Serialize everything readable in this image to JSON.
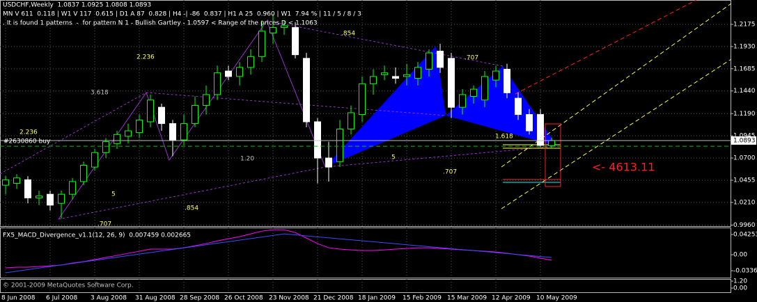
{
  "chart_data": [
    {
      "type": "candlestick",
      "title": "USDCHF,Weekly  1.0837 1.0925 1.0808 1.0893",
      "info": "MN V 611  0.118 | W1 V 117  0.615 | D1 A 87  0.828 | H4 -| -86  0.837 | H1 A 25  0.960 | W1  7.94 % | 11 / 5 / 8 / 3",
      "subtitle": ". It is found 1 patterns  -  for pattern N 1 - Bullish Gartley - 1.0597 < Range of the prices D < 1.1063",
      "categories": [
        "8 Jun 2008",
        null,
        null,
        null,
        "6 Jul 2008",
        null,
        null,
        null,
        "3 Aug 2008",
        null,
        null,
        null,
        "31 Aug 2008",
        null,
        null,
        null,
        "28 Sep 2008",
        null,
        null,
        null,
        "26 Oct 2008",
        null,
        null,
        null,
        "23 Nov 2008",
        null,
        null,
        null,
        "21 Dec 2008",
        null,
        null,
        null,
        "18 Jan 2009",
        null,
        null,
        null,
        "15 Feb 2009",
        null,
        null,
        null,
        "15 Mar 2009",
        null,
        null,
        null,
        "12 Apr 2009",
        null,
        null,
        null,
        "10 May 2009",
        null
      ],
      "series": [
        {
          "open": [
            1.04,
            1.042,
            1.046,
            1.026,
            1.03,
            1.02,
            1.03,
            1.044,
            1.06,
            1.076,
            1.086,
            1.094,
            1.098,
            1.11,
            1.126,
            1.108,
            1.09,
            1.108,
            1.128,
            1.14,
            1.166,
            1.16,
            1.17,
            1.182,
            1.208,
            1.214,
            1.214,
            1.18,
            1.11,
            1.07,
            1.066,
            1.102,
            1.118,
            1.152,
            1.162,
            1.16,
            1.16,
            1.158,
            1.168,
            1.188,
            1.18,
            1.126,
            1.138,
            1.134,
            1.156,
            1.168,
            1.136,
            1.118,
            1.118,
            1.0837
          ],
          "high": [
            1.05,
            1.052,
            1.05,
            1.034,
            1.034,
            1.034,
            1.048,
            1.066,
            1.08,
            1.092,
            1.1,
            1.108,
            1.118,
            1.14,
            1.13,
            1.112,
            1.118,
            1.138,
            1.15,
            1.172,
            1.172,
            1.176,
            1.19,
            1.222,
            1.228,
            1.222,
            1.22,
            1.186,
            1.114,
            1.088,
            1.112,
            1.128,
            1.16,
            1.168,
            1.172,
            1.17,
            1.174,
            1.176,
            1.19,
            1.196,
            1.186,
            1.146,
            1.15,
            1.166,
            1.172,
            1.174,
            1.142,
            1.124,
            1.124,
            1.0925
          ],
          "low": [
            1.03,
            1.036,
            1.02,
            1.018,
            1.012,
            1.003,
            1.024,
            1.04,
            1.056,
            1.07,
            1.08,
            1.086,
            1.092,
            1.104,
            1.1,
            1.072,
            1.084,
            1.104,
            1.118,
            1.134,
            1.156,
            1.15,
            1.162,
            1.176,
            1.196,
            1.206,
            1.18,
            1.104,
            1.042,
            1.044,
            1.06,
            1.096,
            1.11,
            1.14,
            1.156,
            1.152,
            1.15,
            1.15,
            1.16,
            1.164,
            1.114,
            1.118,
            1.13,
            1.126,
            1.148,
            1.136,
            1.112,
            1.096,
            1.082,
            1.0808
          ],
          "close": [
            1.046,
            1.048,
            1.026,
            1.028,
            1.018,
            1.03,
            1.044,
            1.062,
            1.076,
            1.088,
            1.096,
            1.1,
            1.112,
            1.134,
            1.108,
            1.09,
            1.108,
            1.128,
            1.14,
            1.164,
            1.16,
            1.17,
            1.182,
            1.21,
            1.214,
            1.216,
            1.184,
            1.11,
            1.07,
            1.06,
            1.102,
            1.12,
            1.152,
            1.16,
            1.164,
            1.158,
            1.162,
            1.17,
            1.186,
            1.17,
            1.126,
            1.14,
            1.146,
            1.16,
            1.166,
            1.142,
            1.118,
            1.1,
            1.084,
            1.0893
          ]
        }
      ],
      "up_color": "#00ff00",
      "down_color": "#ffffff",
      "ylim": [
        0.9948,
        1.2444
      ],
      "yticks": [
        {
          "value": 0.996,
          "label": "0.9960"
        },
        {
          "value": 1.021,
          "label": "1.0210"
        },
        1.0455,
        {
          "value": 1.07,
          "label": "1.0700"
        },
        1.0945,
        {
          "value": 1.119,
          "label": "1.1190"
        },
        {
          "value": 1.144,
          "label": "1.1440"
        },
        1.1685,
        {
          "value": 1.193,
          "label": "1.1930"
        },
        1.2175
      ],
      "grid": true,
      "last_price": {
        "value": 1.0893,
        "label": "1.0893"
      },
      "order": {
        "label": "#2630860 buy",
        "price": 1.083
      },
      "profit_label": "<- 4613.11",
      "annotations": [
        "3.618",
        "2.236",
        "2.236",
        ".854",
        ".707",
        "5",
        ".854",
        ".707",
        "1.20",
        "5",
        ".707",
        "1.618"
      ]
    },
    {
      "type": "line",
      "title": "FX5_MACD_Divergence_v1.1(12, 26, 9)  0.007459 0.002665",
      "series": [
        {
          "name": "MACD",
          "color": "#ff00ff",
          "values": [
            -0.0277,
            -0.0263,
            -0.0263,
            -0.0248,
            -0.0234,
            -0.0219,
            -0.0175,
            -0.0146,
            -0.0102,
            -0.0058,
            -0.0015,
            0.0029,
            0.0073,
            0.0117,
            0.0117,
            0.0117,
            0.0146,
            0.019,
            0.0234,
            0.0292,
            0.0336,
            0.038,
            0.0438,
            0.0496,
            0.0526,
            0.0526,
            0.0467,
            0.035,
            0.0234,
            0.0146,
            0.0117,
            0.0102,
            0.0088,
            0.0088,
            0.0102,
            0.0117,
            0.0131,
            0.0146,
            0.0146,
            0.0131,
            0.0117,
            0.0102,
            0.0088,
            0.0073,
            0.0058,
            0.0029,
            0,
            -0.0029,
            -0.0073,
            -0.0117
          ]
        },
        {
          "name": "Signal",
          "color": "#3a4cff",
          "values": [
            -0.038,
            -0.0347,
            -0.0314,
            -0.0282,
            -0.0248,
            -0.0216,
            -0.0184,
            -0.015,
            -0.0118,
            -0.0085,
            -0.0053,
            -0.002,
            0.0013,
            0.0045,
            0.0079,
            0.0111,
            0.0143,
            0.0177,
            0.0209,
            0.0242,
            0.0274,
            0.0307,
            0.034,
            0.0372,
            0.0406,
            0.0438,
            0.0418,
            0.0397,
            0.0375,
            0.0355,
            0.0334,
            0.0314,
            0.0293,
            0.0273,
            0.0251,
            0.0231,
            0.021,
            0.019,
            0.0169,
            0.0149,
            0.0127,
            0.0107,
            0.0086,
            0.0066,
            0.0045,
            0.0025,
            0.0003,
            -0.0018,
            -0.0038,
            -0.0058
          ]
        }
      ],
      "ylim": [
        -0.0483,
        0.0572
      ],
      "yticks": [
        -0.03363,
        {
          "value": 0,
          "label": "0.00"
        },
        0.04253
      ],
      "grid": true
    },
    {
      "type": "indicator",
      "title": "© 2001-2009 MetaQuotes Software Corp.",
      "ylim": [
        -0.72,
        1.56
      ],
      "yticks": [
        {
          "value": 0,
          "label": "0.00"
        },
        {
          "value": 1.2,
          "label": "1.20"
        }
      ],
      "grid": true
    }
  ]
}
